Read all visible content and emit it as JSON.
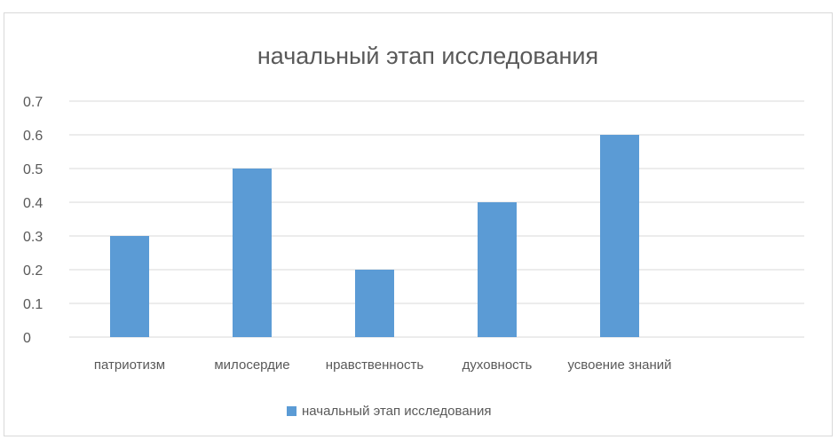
{
  "chart_data": {
    "type": "bar",
    "title": "начальный этап исследования",
    "categories": [
      "патриотизм",
      "милосердие",
      "нравственность",
      "духовность",
      "усвоение знаний"
    ],
    "series": [
      {
        "name": "начальный этап исследования",
        "values": [
          0.3,
          0.5,
          0.2,
          0.4,
          0.6
        ],
        "color": "#5b9bd5"
      }
    ],
    "ylim": [
      0,
      0.7
    ],
    "yticks": [
      "0",
      "0.1",
      "0.2",
      "0.3",
      "0.4",
      "0.5",
      "0.6",
      "0.7"
    ],
    "grid": true,
    "legend": "bottom",
    "colors": {
      "gridline": "#d9d9d9",
      "text": "#595959",
      "axis": "#d9d9d9"
    }
  }
}
